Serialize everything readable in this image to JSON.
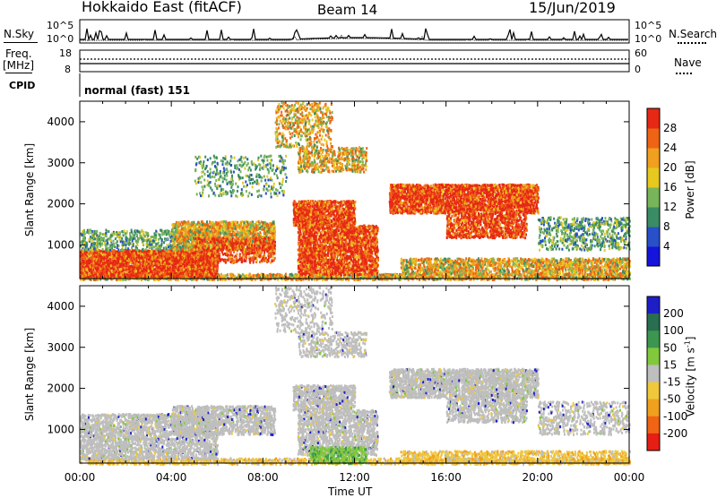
{
  "header": {
    "station": "Hokkaido East (fitACF)",
    "beam": "Beam 14",
    "date": "15/Jun/2019"
  },
  "noise_panel": {
    "left_label": "N.Sky",
    "right_label": "N.Search",
    "axis_ticks": [
      "10^5",
      "10^0"
    ]
  },
  "freq_panel": {
    "left_label_line1": "Freq.",
    "left_label_line2": "[MHz]",
    "left_ticks": [
      "18",
      "8"
    ],
    "right_label": "Nave",
    "right_ticks": [
      "60",
      "0"
    ]
  },
  "cpid_panel": {
    "label": "CPID",
    "value": "normal (fast) 151"
  },
  "chart_data": [
    {
      "type": "heatmap",
      "name": "power-panel",
      "ylabel": "Slant Range [km]",
      "yticks": [
        "1000",
        "2000",
        "3000",
        "4000"
      ],
      "ylim": [
        180,
        4500
      ],
      "xlim": [
        0,
        24
      ],
      "colorbar": {
        "label": "Power [dB]",
        "ticks": [
          "4",
          "8",
          "12",
          "16",
          "20",
          "24",
          "28"
        ],
        "colors": [
          "#1414dc",
          "#2850c8",
          "#3a8c64",
          "#78b45a",
          "#e6c81e",
          "#f0a01e",
          "#ee6414",
          "#e62814"
        ]
      },
      "features": [
        {
          "hours": [
            0,
            6
          ],
          "range_km": [
            250,
            900
          ],
          "value": "strong"
        },
        {
          "hours": [
            4,
            8.5
          ],
          "range_km": [
            900,
            1600
          ],
          "value": "medium"
        },
        {
          "hours": [
            9.5,
            13
          ],
          "range_km": [
            300,
            1500
          ],
          "value": "strong"
        },
        {
          "hours": [
            9.3,
            12
          ],
          "range_km": [
            1500,
            2100
          ],
          "value": "strong"
        },
        {
          "hours": [
            13.5,
            20
          ],
          "range_km": [
            1800,
            2500
          ],
          "value": "strong"
        },
        {
          "hours": [
            9.5,
            12.5
          ],
          "range_km": [
            2800,
            4500
          ],
          "value": "medium"
        },
        {
          "hours": [
            14,
            24
          ],
          "range_km": [
            300,
            700
          ],
          "value": "medium"
        }
      ]
    },
    {
      "type": "heatmap",
      "name": "velocity-panel",
      "ylabel": "Slant Range [km]",
      "yticks": [
        "1000",
        "2000",
        "3000",
        "4000"
      ],
      "ylim": [
        180,
        4500
      ],
      "xlim": [
        0,
        24
      ],
      "xticks": [
        "00:00",
        "04:00",
        "08:00",
        "12:00",
        "16:00",
        "20:00",
        "00:00"
      ],
      "xlabel": "Time UT",
      "colorbar": {
        "label": "Velocity [m s",
        "label_sup": "-1",
        "label_end": "]",
        "ticks": [
          "200",
          "100",
          "50",
          "15",
          "-15",
          "-50",
          "-100",
          "-200"
        ],
        "colors": [
          "#1e1ec8",
          "#286e50",
          "#3c9650",
          "#82c83c",
          "#bebebe",
          "#f0c83c",
          "#f0a01e",
          "#f06414",
          "#e61e14"
        ]
      },
      "features": [
        {
          "hours": [
            0,
            24
          ],
          "range_km": [
            300,
            2500
          ],
          "value": "near-zero (grey)"
        },
        {
          "hours": [
            10,
            12.5
          ],
          "range_km": [
            200,
            600
          ],
          "value": "positive (green)"
        },
        {
          "hours": [
            14,
            24
          ],
          "range_km": [
            200,
            500
          ],
          "value": "negative (orange)"
        }
      ]
    }
  ]
}
